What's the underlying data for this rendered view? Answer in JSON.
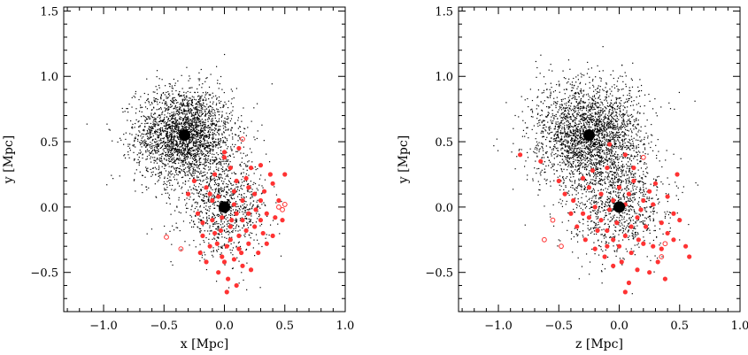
{
  "chart_data": [
    {
      "type": "scatter",
      "title": "",
      "xlabel": "x [Mpc]",
      "ylabel": "y [Mpc]",
      "xlim": [
        -1.33,
        1.0
      ],
      "ylim": [
        -0.8,
        1.53
      ],
      "xticks": [
        -1.0,
        -0.5,
        0.0,
        0.5,
        1.0
      ],
      "xtick_labels": [
        "−1.0",
        "−0.5",
        "0.0",
        "0.5",
        "1.0"
      ],
      "yticks": [
        -0.5,
        0.0,
        0.5,
        1.0,
        1.5
      ],
      "ytick_labels": [
        "−0.5",
        "0.0",
        "0.5",
        "1.0",
        "1.5"
      ],
      "grid": false,
      "series": [
        {
          "marker": "filled-circle-large",
          "color": "#000000",
          "points": [
            [
              -0.33,
              0.55
            ],
            [
              0.0,
              0.0
            ]
          ]
        },
        {
          "marker": "filled-circle",
          "color": "#ff3333",
          "points": [
            [
              -0.08,
              0.25
            ],
            [
              0.12,
              0.45
            ],
            [
              0.05,
              0.3
            ],
            [
              0.18,
              0.22
            ],
            [
              0.25,
              0.1
            ],
            [
              0.3,
              0.05
            ],
            [
              0.35,
              -0.05
            ],
            [
              0.4,
              0.18
            ],
            [
              0.45,
              0.05
            ],
            [
              0.48,
              -0.1
            ],
            [
              0.32,
              -0.2
            ],
            [
              0.28,
              -0.35
            ],
            [
              0.2,
              -0.28
            ],
            [
              0.12,
              -0.22
            ],
            [
              0.05,
              -0.15
            ],
            [
              -0.02,
              -0.08
            ],
            [
              -0.08,
              -0.2
            ],
            [
              -0.12,
              -0.3
            ],
            [
              -0.18,
              -0.12
            ],
            [
              -0.22,
              -0.05
            ],
            [
              -0.05,
              0.08
            ],
            [
              0.08,
              0.12
            ],
            [
              0.15,
              0.05
            ],
            [
              0.2,
              -0.05
            ],
            [
              0.1,
              -0.05
            ],
            [
              0.02,
              -0.3
            ],
            [
              0.0,
              -0.42
            ],
            [
              -0.05,
              -0.5
            ],
            [
              0.03,
              -0.55
            ],
            [
              0.08,
              -0.4
            ],
            [
              0.15,
              -0.45
            ],
            [
              0.22,
              -0.48
            ],
            [
              -0.15,
              -0.42
            ],
            [
              -0.2,
              -0.35
            ],
            [
              0.25,
              -0.15
            ],
            [
              0.35,
              -0.28
            ],
            [
              0.4,
              -0.22
            ],
            [
              -0.1,
              0.05
            ],
            [
              -0.15,
              0.15
            ],
            [
              0.1,
              0.2
            ],
            [
              0.22,
              0.3
            ],
            [
              0.3,
              0.32
            ],
            [
              0.38,
              0.25
            ],
            [
              -0.25,
              0.2
            ],
            [
              0.0,
              0.38
            ],
            [
              0.05,
              -0.25
            ],
            [
              -0.03,
              -0.18
            ],
            [
              0.18,
              -0.18
            ],
            [
              0.12,
              -0.32
            ],
            [
              0.3,
              -0.1
            ],
            [
              0.5,
              0.25
            ],
            [
              -0.1,
              -0.1
            ],
            [
              0.06,
              -0.1
            ],
            [
              -0.06,
              -0.28
            ],
            [
              0.2,
              0.15
            ],
            [
              -0.3,
              0.1
            ],
            [
              0.42,
              -0.08
            ],
            [
              0.1,
              -0.6
            ],
            [
              0.02,
              -0.65
            ],
            [
              0.0,
              0.42
            ],
            [
              0.15,
              -0.1
            ],
            [
              -0.18,
              -0.22
            ],
            [
              0.26,
              -0.02
            ],
            [
              0.33,
              0.12
            ],
            [
              -0.12,
              0.1
            ],
            [
              0.08,
              0.02
            ],
            [
              0.14,
              -0.35
            ],
            [
              -0.02,
              -0.38
            ]
          ]
        },
        {
          "marker": "open-circle",
          "color": "#ff3333",
          "points": [
            [
              -0.48,
              -0.23
            ],
            [
              -0.36,
              -0.32
            ],
            [
              0.45,
              0.0
            ],
            [
              0.5,
              0.02
            ],
            [
              0.48,
              -0.02
            ],
            [
              0.15,
              0.52
            ]
          ]
        }
      ],
      "background_scatter": {
        "marker": "dot",
        "color": "#000000",
        "clusters": [
          {
            "center": [
              -0.33,
              0.55
            ],
            "spread": [
              0.2,
              0.18
            ],
            "count": 2600
          },
          {
            "center": [
              0.0,
              0.0
            ],
            "spread": [
              0.18,
              0.18
            ],
            "count": 900
          }
        ]
      }
    },
    {
      "type": "scatter",
      "title": "",
      "xlabel": "z [Mpc]",
      "ylabel": "y [Mpc]",
      "xlim": [
        -1.33,
        1.0
      ],
      "ylim": [
        -0.8,
        1.53
      ],
      "xticks": [
        -1.0,
        -0.5,
        0.0,
        0.5,
        1.0
      ],
      "xtick_labels": [
        "−1.0",
        "−0.5",
        "0.0",
        "0.5",
        "1.0"
      ],
      "yticks": [
        -0.5,
        0.0,
        0.5,
        1.0,
        1.5
      ],
      "ytick_labels": [
        "−0.5",
        "0.0",
        "0.5",
        "1.0",
        "1.5"
      ],
      "grid": false,
      "series": [
        {
          "marker": "filled-circle-large",
          "color": "#000000",
          "points": [
            [
              -0.25,
              0.55
            ],
            [
              0.0,
              0.0
            ]
          ]
        },
        {
          "marker": "filled-circle",
          "color": "#ff3333",
          "points": [
            [
              -0.82,
              0.4
            ],
            [
              -0.65,
              0.35
            ],
            [
              -0.5,
              0.2
            ],
            [
              -0.45,
              0.1
            ],
            [
              -0.38,
              0.05
            ],
            [
              -0.3,
              -0.05
            ],
            [
              -0.25,
              0.15
            ],
            [
              -0.2,
              0.0
            ],
            [
              -0.15,
              -0.1
            ],
            [
              -0.1,
              -0.18
            ],
            [
              -0.05,
              -0.25
            ],
            [
              0.0,
              -0.3
            ],
            [
              0.05,
              -0.22
            ],
            [
              0.1,
              -0.15
            ],
            [
              0.15,
              -0.08
            ],
            [
              0.2,
              0.05
            ],
            [
              0.25,
              0.12
            ],
            [
              0.3,
              0.18
            ],
            [
              0.35,
              -0.12
            ],
            [
              0.4,
              -0.2
            ],
            [
              0.45,
              -0.05
            ],
            [
              0.5,
              -0.1
            ],
            [
              0.55,
              -0.3
            ],
            [
              0.58,
              -0.38
            ],
            [
              0.38,
              -0.55
            ],
            [
              0.25,
              -0.5
            ],
            [
              0.15,
              -0.48
            ],
            [
              0.08,
              -0.58
            ],
            [
              0.05,
              -0.65
            ],
            [
              -0.05,
              -0.45
            ],
            [
              -0.12,
              -0.38
            ],
            [
              -0.2,
              -0.32
            ],
            [
              -0.28,
              -0.25
            ],
            [
              -0.35,
              -0.15
            ],
            [
              -0.4,
              -0.05
            ],
            [
              -0.22,
              0.28
            ],
            [
              -0.1,
              0.3
            ],
            [
              0.05,
              0.4
            ],
            [
              -0.08,
              0.48
            ],
            [
              0.12,
              0.3
            ],
            [
              0.2,
              -0.28
            ],
            [
              0.28,
              -0.3
            ],
            [
              0.32,
              -0.42
            ],
            [
              -0.15,
              0.1
            ],
            [
              -0.05,
              0.05
            ],
            [
              0.08,
              0.1
            ],
            [
              0.18,
              -0.02
            ],
            [
              0.28,
              0.02
            ],
            [
              0.4,
              0.08
            ],
            [
              0.48,
              0.25
            ],
            [
              -0.3,
              0.22
            ],
            [
              -0.02,
              -0.12
            ],
            [
              0.1,
              -0.35
            ],
            [
              -0.18,
              -0.18
            ],
            [
              0.0,
              0.15
            ],
            [
              0.12,
              0.2
            ],
            [
              0.22,
              -0.15
            ],
            [
              -0.08,
              -0.02
            ],
            [
              0.35,
              -0.32
            ],
            [
              0.45,
              -0.25
            ],
            [
              -0.25,
              -0.08
            ],
            [
              0.02,
              -0.42
            ],
            [
              -0.1,
              -0.3
            ],
            [
              0.16,
              -0.25
            ],
            [
              0.05,
              0.02
            ]
          ]
        },
        {
          "marker": "open-circle",
          "color": "#ff3333",
          "points": [
            [
              -0.55,
              -0.1
            ],
            [
              -0.62,
              -0.25
            ],
            [
              -0.48,
              -0.3
            ],
            [
              0.35,
              -0.38
            ],
            [
              0.38,
              -0.28
            ],
            [
              0.2,
              0.38
            ]
          ]
        }
      ],
      "background_scatter": {
        "marker": "dot",
        "color": "#000000",
        "clusters": [
          {
            "center": [
              -0.25,
              0.55
            ],
            "spread": [
              0.22,
              0.2
            ],
            "count": 2600
          },
          {
            "center": [
              0.0,
              0.0
            ],
            "spread": [
              0.2,
              0.2
            ],
            "count": 900
          }
        ]
      }
    }
  ]
}
